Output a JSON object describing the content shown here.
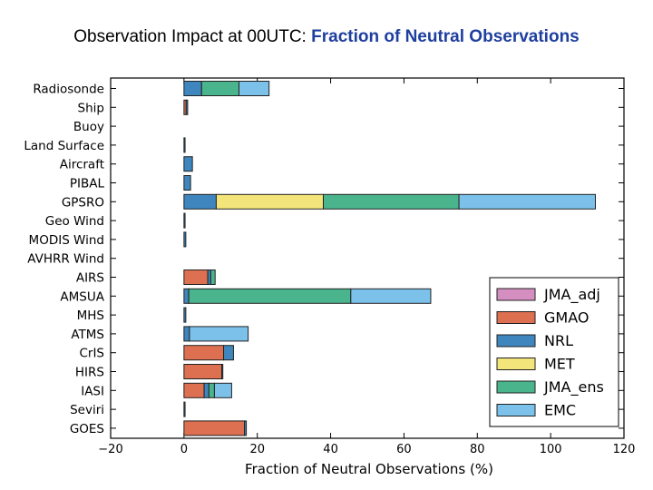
{
  "title_prefix": "Observation Impact at 00UTC: ",
  "title_highlight": "Fraction of Neutral Observations",
  "colors": {
    "title_highlight": "#1f3f9f",
    "JMA_adj": "#d58ec0",
    "GMAO": "#dd7050",
    "NRL": "#3f86be",
    "MET": "#f3e579",
    "JMA_ens": "#4ab48c",
    "EMC": "#7cc1ea"
  },
  "chart_data": {
    "type": "bar",
    "orientation": "horizontal",
    "stacked": true,
    "title": "Observation Impact at 00UTC: Fraction of Neutral Observations",
    "xlabel": "Fraction of Neutral Observations (%)",
    "ylabel": "",
    "xlim": [
      -20,
      120
    ],
    "xticks": [
      -20,
      0,
      20,
      40,
      60,
      80,
      100,
      120
    ],
    "xtick_labels": [
      "−20",
      "0",
      "20",
      "40",
      "60",
      "80",
      "100",
      "120"
    ],
    "grid": false,
    "legend_position": "bottom-right",
    "categories": [
      "Radiosonde",
      "Ship",
      "Buoy",
      "Land Surface",
      "Aircraft",
      "PIBAL",
      "GPSRO",
      "Geo Wind",
      "MODIS Wind",
      "AVHRR Wind",
      "AIRS",
      "AMSUA",
      "MHS",
      "ATMS",
      "CrIS",
      "HIRS",
      "IASI",
      "Seviri",
      "GOES"
    ],
    "series": [
      {
        "name": "JMA_adj",
        "values": [
          0,
          0,
          0,
          0,
          0,
          0,
          0,
          0,
          0,
          0,
          0,
          0,
          0,
          0,
          0,
          0,
          0,
          0,
          0
        ]
      },
      {
        "name": "GMAO",
        "values": [
          0,
          0.6,
          0,
          0,
          0,
          0,
          0,
          0,
          0,
          0,
          6.5,
          0,
          0,
          0,
          10.8,
          10.3,
          5.5,
          0,
          16.5
        ]
      },
      {
        "name": "NRL",
        "values": [
          4.8,
          0.4,
          0,
          0.2,
          2.3,
          1.8,
          8.8,
          0.2,
          0.5,
          0,
          0.8,
          1.3,
          0.5,
          1.5,
          2.7,
          0.2,
          1.3,
          0.2,
          0.5
        ]
      },
      {
        "name": "MET",
        "values": [
          0,
          0,
          0,
          0,
          0,
          0,
          29.2,
          0,
          0,
          0,
          0,
          0,
          0,
          0,
          0,
          0,
          0,
          0,
          0
        ]
      },
      {
        "name": "JMA_ens",
        "values": [
          10.2,
          0,
          0,
          0,
          0,
          0,
          37,
          0,
          0,
          0,
          1.2,
          44.2,
          0,
          0,
          0,
          0,
          1.5,
          0,
          0
        ]
      },
      {
        "name": "EMC",
        "values": [
          8.2,
          0,
          0,
          0,
          0,
          0,
          37.2,
          0,
          0,
          0,
          0,
          21.8,
          0,
          16,
          0,
          0,
          4.7,
          0,
          0
        ]
      }
    ]
  }
}
